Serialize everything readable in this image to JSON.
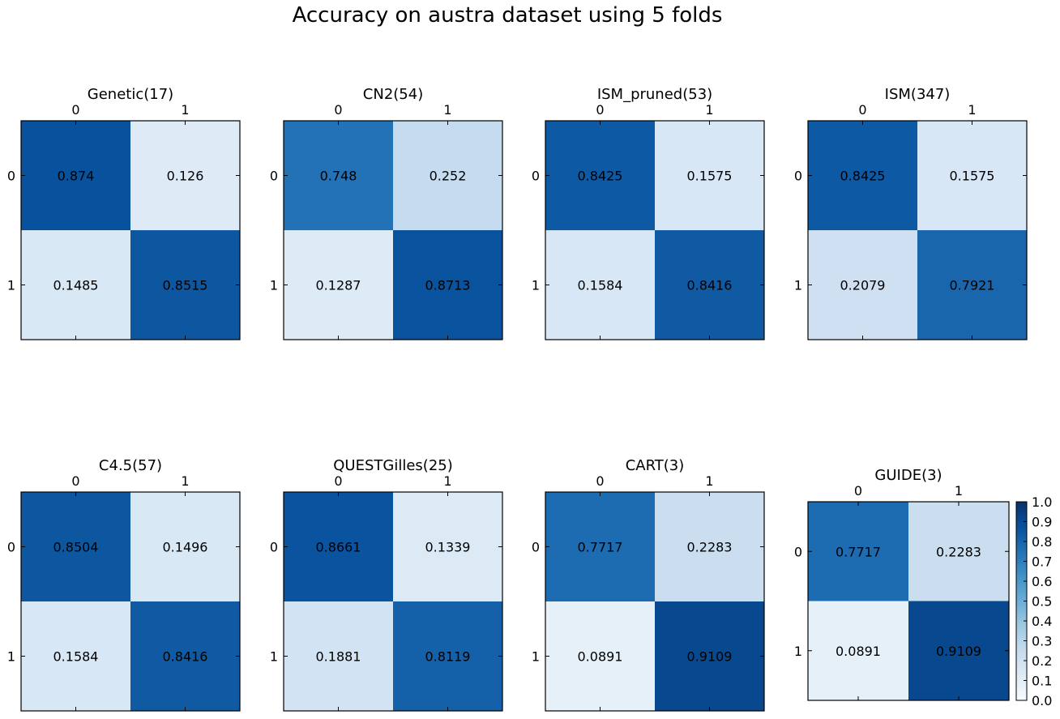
{
  "title": "Accuracy on austra dataset using 5 folds",
  "colormap": {
    "low": "#f7fbff",
    "high": "#08306b",
    "name": "Blues"
  },
  "chart_data": [
    {
      "type": "heatmap",
      "title": "Genetic(17)",
      "x_ticks": [
        "0",
        "1"
      ],
      "y_ticks": [
        "0",
        "1"
      ],
      "values": [
        [
          0.874,
          0.126
        ],
        [
          0.1485,
          0.8515
        ]
      ],
      "labels": [
        [
          "0.874",
          "0.126"
        ],
        [
          "0.1485",
          "0.8515"
        ]
      ],
      "vmin": 0,
      "vmax": 1
    },
    {
      "type": "heatmap",
      "title": "CN2(54)",
      "x_ticks": [
        "0",
        "1"
      ],
      "y_ticks": [
        "0",
        "1"
      ],
      "values": [
        [
          0.748,
          0.252
        ],
        [
          0.1287,
          0.8713
        ]
      ],
      "labels": [
        [
          "0.748",
          "0.252"
        ],
        [
          "0.1287",
          "0.8713"
        ]
      ],
      "vmin": 0,
      "vmax": 1
    },
    {
      "type": "heatmap",
      "title": "ISM_pruned(53)",
      "x_ticks": [
        "0",
        "1"
      ],
      "y_ticks": [
        "0",
        "1"
      ],
      "values": [
        [
          0.8425,
          0.1575
        ],
        [
          0.1584,
          0.8416
        ]
      ],
      "labels": [
        [
          "0.8425",
          "0.1575"
        ],
        [
          "0.1584",
          "0.8416"
        ]
      ],
      "vmin": 0,
      "vmax": 1
    },
    {
      "type": "heatmap",
      "title": "ISM(347)",
      "x_ticks": [
        "0",
        "1"
      ],
      "y_ticks": [
        "0",
        "1"
      ],
      "values": [
        [
          0.8425,
          0.1575
        ],
        [
          0.2079,
          0.7921
        ]
      ],
      "labels": [
        [
          "0.8425",
          "0.1575"
        ],
        [
          "0.2079",
          "0.7921"
        ]
      ],
      "vmin": 0,
      "vmax": 1
    },
    {
      "type": "heatmap",
      "title": "C4.5(57)",
      "x_ticks": [
        "0",
        "1"
      ],
      "y_ticks": [
        "0",
        "1"
      ],
      "values": [
        [
          0.8504,
          0.1496
        ],
        [
          0.1584,
          0.8416
        ]
      ],
      "labels": [
        [
          "0.8504",
          "0.1496"
        ],
        [
          "0.1584",
          "0.8416"
        ]
      ],
      "vmin": 0,
      "vmax": 1
    },
    {
      "type": "heatmap",
      "title": "QUESTGilles(25)",
      "x_ticks": [
        "0",
        "1"
      ],
      "y_ticks": [
        "0",
        "1"
      ],
      "values": [
        [
          0.8661,
          0.1339
        ],
        [
          0.1881,
          0.8119
        ]
      ],
      "labels": [
        [
          "0.8661",
          "0.1339"
        ],
        [
          "0.1881",
          "0.8119"
        ]
      ],
      "vmin": 0,
      "vmax": 1
    },
    {
      "type": "heatmap",
      "title": "CART(3)",
      "x_ticks": [
        "0",
        "1"
      ],
      "y_ticks": [
        "0",
        "1"
      ],
      "values": [
        [
          0.7717,
          0.2283
        ],
        [
          0.0891,
          0.9109
        ]
      ],
      "labels": [
        [
          "0.7717",
          "0.2283"
        ],
        [
          "0.0891",
          "0.9109"
        ]
      ],
      "vmin": 0,
      "vmax": 1
    },
    {
      "type": "heatmap",
      "title": "GUIDE(3)",
      "x_ticks": [
        "0",
        "1"
      ],
      "y_ticks": [
        "0",
        "1"
      ],
      "values": [
        [
          0.7717,
          0.2283
        ],
        [
          0.0891,
          0.9109
        ]
      ],
      "labels": [
        [
          "0.7717",
          "0.2283"
        ],
        [
          "0.0891",
          "0.9109"
        ]
      ],
      "vmin": 0,
      "vmax": 1
    }
  ],
  "colorbar": {
    "ticks": [
      "0.0",
      "0.1",
      "0.2",
      "0.3",
      "0.4",
      "0.5",
      "0.6",
      "0.7",
      "0.8",
      "0.9",
      "1.0"
    ],
    "min": 0,
    "max": 1
  }
}
